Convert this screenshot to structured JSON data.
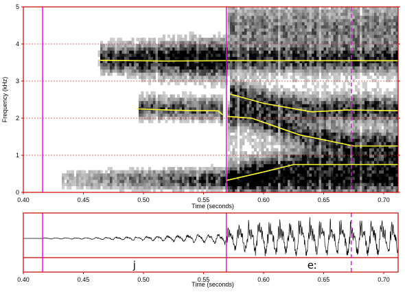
{
  "chart_data": [
    {
      "type": "heatmap",
      "subtype": "spectrogram",
      "xlabel": "Time (seconds)",
      "ylabel": "Frequency (kHz)",
      "xlim": [
        0.4,
        0.712
      ],
      "ylim": [
        0,
        5
      ],
      "x_ticks": [
        "0.40",
        "0.45",
        "0.50",
        "0.55",
        "0.60",
        "0.65",
        "0.70"
      ],
      "y_ticks": [
        "0",
        "1",
        "2",
        "3",
        "4",
        "5"
      ],
      "grid": "dotted red horizontal at each kHz",
      "frame_color": "#cc0000",
      "formant_color": "#ffff33",
      "boundary_color": "#ff00ff",
      "boundaries": [
        {
          "time": 0.416,
          "style": "solid"
        },
        {
          "time": 0.569,
          "style": "solid"
        },
        {
          "time": 0.673,
          "style": "dashed"
        }
      ],
      "formants": [
        {
          "x": [
            0.464,
            0.52,
            0.569,
            0.6,
            0.65,
            0.712
          ],
          "y": [
            3.56,
            3.54,
            3.55,
            3.55,
            3.55,
            3.55
          ]
        },
        {
          "x": [
            0.495,
            0.52,
            0.545,
            0.562,
            0.566
          ],
          "y": [
            2.25,
            2.22,
            2.2,
            2.2,
            2.09
          ]
        },
        {
          "x": [
            0.572,
            0.6,
            0.64,
            0.67,
            0.712
          ],
          "y": [
            2.65,
            2.4,
            2.17,
            2.22,
            2.2
          ]
        },
        {
          "x": [
            0.569,
            0.59,
            0.63,
            0.675,
            0.712
          ],
          "y": [
            2.05,
            2.0,
            1.55,
            1.25,
            1.25
          ]
        },
        {
          "x": [
            0.569,
            0.6,
            0.625,
            0.67,
            0.712
          ],
          "y": [
            0.32,
            0.55,
            0.75,
            0.75,
            0.75
          ]
        }
      ]
    },
    {
      "type": "line",
      "subtype": "waveform",
      "xlabel": "Time (seconds)",
      "xlim": [
        0.4,
        0.712
      ],
      "x_ticks": [
        "0.40",
        "0.45",
        "0.50",
        "0.55",
        "0.60",
        "0.65",
        "0.70"
      ],
      "segments": [
        {
          "label": "j",
          "start": 0.416,
          "end": 0.569
        },
        {
          "label": "eː",
          "start": 0.569,
          "end": 0.712
        }
      ]
    }
  ]
}
